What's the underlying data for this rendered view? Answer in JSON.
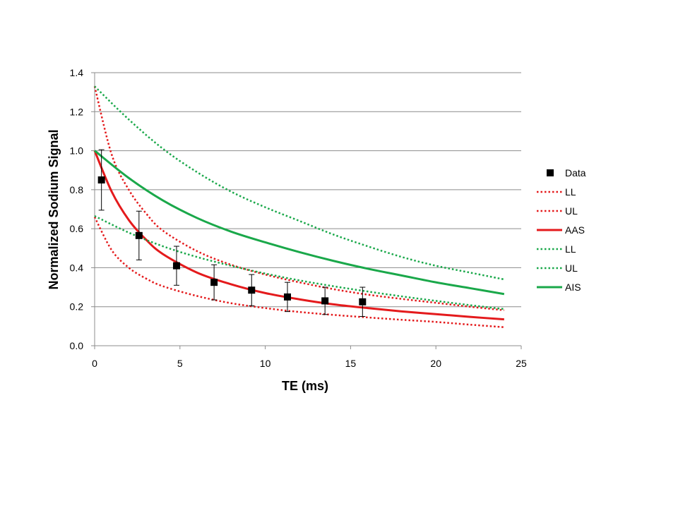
{
  "chart_data": {
    "type": "line",
    "title": "",
    "xlabel": "TE (ms)",
    "ylabel": "Normalized Sodium Signal",
    "xlim": [
      0,
      25
    ],
    "ylim": [
      0,
      1.4
    ],
    "grid": "horizontal",
    "legend_position": "right",
    "x_ticks": [
      "0",
      "5",
      "10",
      "15",
      "20",
      "25"
    ],
    "y_ticks": [
      "0.0",
      "0.2",
      "0.4",
      "0.6",
      "0.8",
      "1.0",
      "1.2",
      "1.4"
    ],
    "data_points": {
      "name": "Data",
      "color": "#000000",
      "x": [
        0.4,
        2.6,
        4.8,
        7.0,
        9.2,
        11.3,
        13.5,
        15.7
      ],
      "y": [
        0.85,
        0.565,
        0.41,
        0.325,
        0.285,
        0.25,
        0.23,
        0.225
      ],
      "error": [
        0.155,
        0.125,
        0.1,
        0.09,
        0.08,
        0.075,
        0.07,
        0.075
      ]
    },
    "series": [
      {
        "name": "LL",
        "color": "#e41a1c",
        "style": "dotted",
        "x": [
          0,
          1,
          2,
          3,
          4,
          6,
          8,
          10,
          12,
          14,
          16,
          18,
          20,
          22,
          24
        ],
        "y": [
          0.66,
          0.49,
          0.4,
          0.345,
          0.305,
          0.255,
          0.218,
          0.193,
          0.173,
          0.158,
          0.145,
          0.133,
          0.122,
          0.108,
          0.095
        ]
      },
      {
        "name": "UL",
        "color": "#e41a1c",
        "style": "dotted",
        "x": [
          0,
          1,
          2,
          3,
          4,
          6,
          8,
          10,
          12,
          14,
          16,
          18,
          20,
          22,
          24
        ],
        "y": [
          1.33,
          0.98,
          0.8,
          0.68,
          0.59,
          0.485,
          0.415,
          0.365,
          0.325,
          0.29,
          0.262,
          0.24,
          0.22,
          0.2,
          0.182
        ]
      },
      {
        "name": "AAS",
        "color": "#e41a1c",
        "style": "solid",
        "x": [
          0,
          1,
          2,
          3,
          4,
          6,
          8,
          10,
          12,
          14,
          16,
          18,
          20,
          22,
          24
        ],
        "y": [
          1.0,
          0.79,
          0.645,
          0.545,
          0.47,
          0.375,
          0.315,
          0.27,
          0.238,
          0.212,
          0.193,
          0.176,
          0.162,
          0.148,
          0.135
        ]
      },
      {
        "name": "LL",
        "color": "#1aa84a",
        "style": "dotted",
        "x": [
          0,
          2,
          4,
          6,
          8,
          10,
          12,
          14,
          16,
          18,
          20,
          22,
          24
        ],
        "y": [
          0.665,
          0.58,
          0.51,
          0.455,
          0.41,
          0.37,
          0.335,
          0.305,
          0.278,
          0.253,
          0.23,
          0.208,
          0.188
        ]
      },
      {
        "name": "UL",
        "color": "#1aa84a",
        "style": "dotted",
        "x": [
          0,
          2,
          4,
          6,
          8,
          10,
          12,
          14,
          16,
          18,
          20,
          22,
          24
        ],
        "y": [
          1.33,
          1.16,
          1.01,
          0.89,
          0.79,
          0.71,
          0.64,
          0.57,
          0.51,
          0.455,
          0.41,
          0.375,
          0.34
        ]
      },
      {
        "name": "AIS",
        "color": "#1aa84a",
        "style": "solid",
        "x": [
          0,
          2,
          4,
          6,
          8,
          10,
          12,
          14,
          16,
          18,
          20,
          22,
          24
        ],
        "y": [
          1.0,
          0.86,
          0.745,
          0.655,
          0.585,
          0.53,
          0.48,
          0.435,
          0.395,
          0.36,
          0.325,
          0.295,
          0.265
        ]
      }
    ]
  }
}
